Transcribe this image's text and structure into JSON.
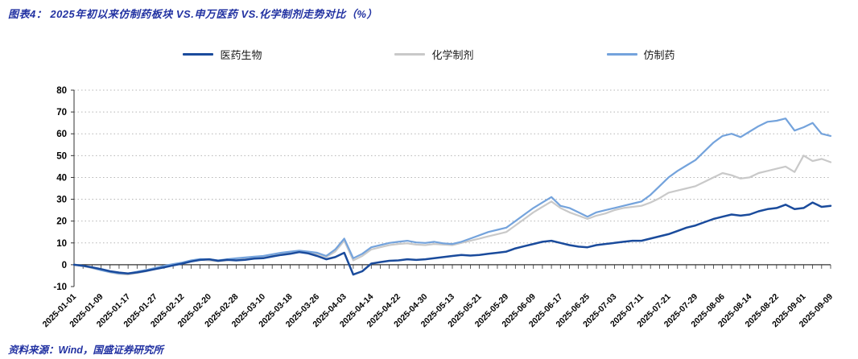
{
  "title": "图表4：  2025年初以来仿制药板块 VS.申万医药 VS.化学制剂走势对比（%）",
  "source": "资料来源：Wind，国盛证券研究所",
  "colors": {
    "title_text": "#2232A2",
    "source_text": "#2232A2",
    "axis": "#333333",
    "gridline": "#b5b5b5"
  },
  "chart_data": {
    "type": "line",
    "title": "2025年初以来仿制药板块 VS.申万医药 VS.化学制剂走势对比（%）",
    "ylim": [
      -10,
      80
    ],
    "y_ticks": [
      80,
      70,
      60,
      50,
      40,
      30,
      20,
      10,
      0,
      -10
    ],
    "grid": "horizontal-dotted",
    "legend_position": "top-center",
    "x_tick_labels": [
      "2025-01-01",
      "2025-01-09",
      "2025-01-17",
      "2025-01-27",
      "2025-02-12",
      "2025-02-20",
      "2025-02-28",
      "2025-03-10",
      "2025-03-18",
      "2025-03-26",
      "2025-04-03",
      "2025-04-14",
      "2025-04-22",
      "2025-04-30",
      "2025-05-13",
      "2025-05-21",
      "2025-05-29",
      "2025-06-09",
      "2025-06-17",
      "2025-06-25",
      "2025-07-03",
      "2025-07-11",
      "2025-07-21",
      "2025-07-29",
      "2025-08-06",
      "2025-08-14",
      "2025-08-22",
      "2025-09-01",
      "2025-09-09"
    ],
    "points_per_tick": 3,
    "series": [
      {
        "name": "化学制剂",
        "color": "#C9C9C9",
        "width": 2.2,
        "values": [
          0,
          -0.6,
          -1.5,
          -2.5,
          -3.5,
          -4.2,
          -4.5,
          -3.8,
          -3,
          -2,
          -1,
          -0.2,
          0.5,
          1.6,
          2.2,
          2,
          1.6,
          2,
          2.5,
          2.8,
          3.2,
          3.5,
          4.2,
          5,
          5.5,
          6,
          5.6,
          5,
          3.5,
          6,
          11,
          2,
          4,
          7,
          8,
          9,
          9.5,
          9.8,
          9.2,
          9,
          9.5,
          9.2,
          9,
          10,
          11,
          12,
          13,
          14,
          15,
          18,
          21,
          24,
          26.5,
          29,
          26,
          24,
          22.5,
          21,
          22.5,
          23.5,
          25,
          26,
          26.5,
          27,
          28.5,
          30.5,
          33,
          34,
          35,
          36,
          38,
          40,
          42,
          41,
          39.5,
          40,
          42,
          43,
          44,
          45,
          42.5,
          50,
          47.5,
          48.5,
          47
        ]
      },
      {
        "name": "仿制药",
        "color": "#74A3DC",
        "width": 2.2,
        "values": [
          0,
          -0.5,
          -1.3,
          -2.5,
          -3.3,
          -4,
          -4,
          -3.2,
          -2.4,
          -1.5,
          -0.5,
          0.3,
          1,
          2,
          2.6,
          2.5,
          2,
          2.5,
          3,
          3.3,
          3.7,
          4,
          4.8,
          5.5,
          6,
          6.5,
          6,
          5.5,
          4,
          7,
          12,
          3,
          5,
          8,
          9,
          10,
          10.5,
          11,
          10.2,
          10,
          10.5,
          9.8,
          9.5,
          10.5,
          12,
          13.5,
          15,
          16,
          17,
          20,
          23,
          26,
          28.5,
          31,
          27,
          26,
          24,
          22,
          24,
          25,
          26,
          27,
          28,
          29,
          32,
          36,
          40,
          43,
          45.5,
          48,
          52,
          56,
          59,
          60,
          58.5,
          61,
          63.5,
          65.5,
          66,
          67,
          61.5,
          63,
          65,
          60,
          59
        ]
      },
      {
        "name": "医药生物",
        "color": "#1A4B9C",
        "width": 2.5,
        "values": [
          0,
          -0.5,
          -1.2,
          -2,
          -3,
          -3.6,
          -4,
          -3.5,
          -2.8,
          -2,
          -1.2,
          -0.3,
          0.5,
          1.5,
          2.2,
          2.5,
          1.8,
          2.3,
          2,
          2.3,
          2.8,
          3,
          3.8,
          4.5,
          5,
          5.8,
          5.2,
          4,
          2.5,
          3.5,
          5.5,
          -4.5,
          -3,
          0.5,
          1.2,
          1.8,
          2,
          2.5,
          2.2,
          2.5,
          3,
          3.5,
          4,
          4.5,
          4.2,
          4.5,
          5,
          5.5,
          6,
          7.5,
          8.5,
          9.5,
          10.5,
          11,
          10,
          9,
          8.3,
          8,
          9,
          9.5,
          10,
          10.5,
          11,
          11,
          12,
          13,
          14,
          15.5,
          17,
          18,
          19.5,
          21,
          22,
          23,
          22.5,
          23,
          24.5,
          25.5,
          26,
          27.5,
          25.5,
          26,
          28.5,
          26.5,
          27
        ]
      }
    ],
    "legend_order": [
      "医药生物",
      "化学制剂",
      "仿制药"
    ]
  }
}
